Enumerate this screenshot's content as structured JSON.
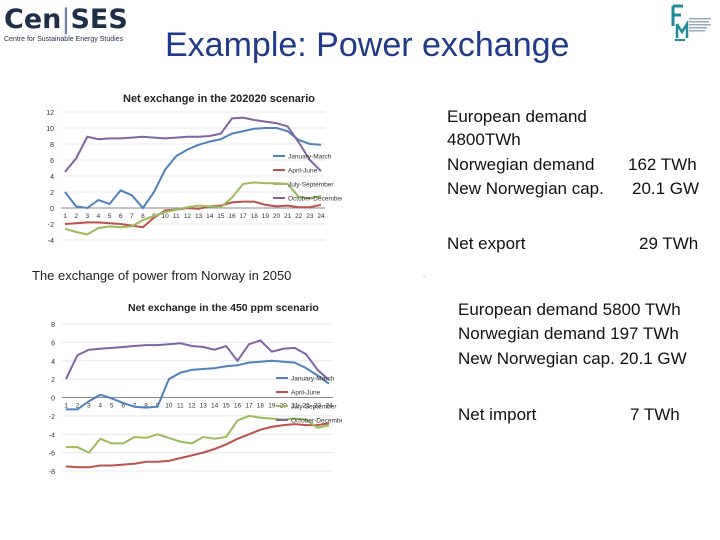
{
  "logo": {
    "brand_left": "Cen",
    "brand_right": "SES",
    "tagline": "Centre for Sustainable Energy Studies",
    "right_mark": "fme"
  },
  "title": "Example: Power exchange",
  "caption": "The exchange of  power from Norway in 2050",
  "separator": ".",
  "scenario1": {
    "european_demand_label": "European demand",
    "european_demand_value": "4800TWh",
    "norwegian_demand_label": "Norwegian demand",
    "norwegian_demand_value": "162 TWh",
    "new_cap_label": "New Norwegian cap.",
    "new_cap_value": "20.1 GW",
    "net_label": "Net export",
    "net_value": "29 TWh"
  },
  "scenario2": {
    "european_demand_line": "European demand  5800 TWh",
    "norwegian_demand_line": "Norwegian demand  197 TWh",
    "new_cap_line": "New Norwegian cap.  20.1 GW",
    "net_label": "Net import",
    "net_value": "7 TWh"
  },
  "chart_data": [
    {
      "type": "line",
      "title": "Net exchange in the 202020 scenario",
      "x": [
        1,
        2,
        3,
        4,
        5,
        6,
        7,
        8,
        9,
        10,
        11,
        12,
        13,
        14,
        15,
        16,
        17,
        18,
        19,
        20,
        21,
        22,
        23,
        24
      ],
      "ylim": [
        -4,
        12
      ],
      "yticks": [
        -4,
        -2,
        0,
        2,
        4,
        6,
        8,
        10,
        12
      ],
      "legend": "right",
      "series": [
        {
          "name": "January-March",
          "color": "#4f81bd",
          "values": [
            2.0,
            0.2,
            0.0,
            1.0,
            0.5,
            2.2,
            1.6,
            0.0,
            2.0,
            4.8,
            6.5,
            7.3,
            7.9,
            8.3,
            8.6,
            9.3,
            9.6,
            9.9,
            10.0,
            10.0,
            9.6,
            8.5,
            8.0,
            7.9
          ]
        },
        {
          "name": "April-June",
          "color": "#c0504d",
          "values": [
            -2.0,
            -1.9,
            -1.8,
            -1.8,
            -1.9,
            -2.0,
            -2.2,
            -2.4,
            -1.2,
            -0.3,
            -0.2,
            0.0,
            -0.1,
            0.2,
            0.3,
            0.7,
            0.8,
            0.8,
            0.4,
            0.2,
            0.3,
            0.1,
            0.1,
            0.4
          ]
        },
        {
          "name": "July-September",
          "color": "#9bbb59",
          "values": [
            -2.6,
            -3.0,
            -3.3,
            -2.5,
            -2.3,
            -2.4,
            -2.3,
            -1.5,
            -1.0,
            -0.5,
            -0.2,
            0.1,
            0.3,
            0.2,
            0.1,
            1.3,
            3.0,
            3.2,
            3.1,
            3.1,
            3.0,
            1.4,
            1.2,
            1.5
          ]
        },
        {
          "name": "October-December",
          "color": "#8064a2",
          "values": [
            4.5,
            6.2,
            8.9,
            8.6,
            8.7,
            8.7,
            8.8,
            8.9,
            8.8,
            8.7,
            8.8,
            8.9,
            8.9,
            9.0,
            9.3,
            11.2,
            11.3,
            11.0,
            10.8,
            10.6,
            10.2,
            8.2,
            6.0,
            4.6
          ]
        }
      ]
    },
    {
      "type": "line",
      "title": "Net exchange in the 450 ppm scenario",
      "x": [
        1,
        2,
        3,
        4,
        5,
        6,
        7,
        8,
        9,
        10,
        11,
        12,
        13,
        14,
        15,
        16,
        17,
        18,
        19,
        20,
        21,
        22,
        23,
        24
      ],
      "ylim": [
        -8,
        8
      ],
      "yticks": [
        -8,
        -6,
        -4,
        -2,
        0,
        2,
        4,
        6,
        8
      ],
      "legend": "right",
      "series": [
        {
          "name": "January-March",
          "color": "#4f81bd",
          "values": [
            -1.3,
            -1.3,
            -0.4,
            0.3,
            -0.1,
            -0.6,
            -1.0,
            -1.1,
            -1.0,
            2.0,
            2.7,
            3.0,
            3.1,
            3.2,
            3.4,
            3.5,
            3.8,
            3.9,
            4.0,
            3.9,
            3.8,
            3.2,
            2.4,
            1.5
          ]
        },
        {
          "name": "April-June",
          "color": "#c0504d",
          "values": [
            -7.5,
            -7.6,
            -7.6,
            -7.4,
            -7.4,
            -7.3,
            -7.2,
            -7.0,
            -7.0,
            -6.9,
            -6.6,
            -6.3,
            -6.0,
            -5.6,
            -5.1,
            -4.5,
            -4.0,
            -3.5,
            -3.2,
            -3.0,
            -2.9,
            -3.0,
            -3.0,
            -2.8
          ]
        },
        {
          "name": "July-September",
          "color": "#9bbb59",
          "values": [
            -5.4,
            -5.4,
            -6.0,
            -4.5,
            -5.0,
            -5.0,
            -4.3,
            -4.4,
            -4.0,
            -4.4,
            -4.8,
            -5.0,
            -4.3,
            -4.5,
            -4.3,
            -2.5,
            -2.0,
            -2.2,
            -2.3,
            -2.4,
            -2.3,
            -2.4,
            -3.3,
            -3.0
          ]
        },
        {
          "name": "October-December",
          "color": "#8064a2",
          "values": [
            2.0,
            4.6,
            5.2,
            5.3,
            5.4,
            5.5,
            5.6,
            5.7,
            5.7,
            5.8,
            5.9,
            5.6,
            5.5,
            5.2,
            5.6,
            4.0,
            5.8,
            6.2,
            5.0,
            5.3,
            5.4,
            4.7,
            3.0,
            1.9
          ]
        }
      ]
    }
  ]
}
